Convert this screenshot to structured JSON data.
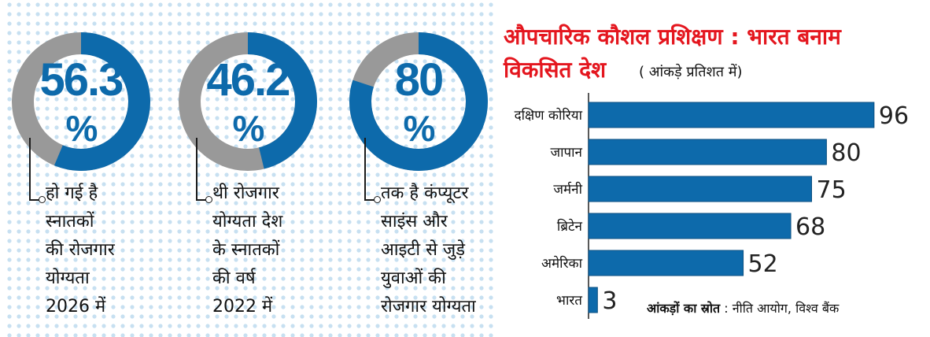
{
  "donuts": [
    {
      "value": 56.3,
      "number": "56.3",
      "unit": "%",
      "caption": [
        "हो गई है",
        "स्नातकों",
        "की रोजगार",
        "योग्यता",
        "2026 में"
      ]
    },
    {
      "value": 46.2,
      "number": "46.2",
      "unit": "%",
      "caption": [
        "थी रोजगार",
        "योग्यता देश",
        "के स्नातकों",
        "की वर्ष",
        "2022 में"
      ]
    },
    {
      "value": 80,
      "number": "80",
      "unit": "%",
      "caption": [
        "तक है कंप्यूटर",
        "साइंस और",
        "आइटी से जुड़े",
        "युवाओं की",
        "रोजगार योग्यता"
      ]
    }
  ],
  "chart_data": {
    "type": "bar",
    "orientation": "horizontal",
    "title_line1": "औपचारिक कौशल प्रशिक्षण : भारत बनाम",
    "title_line2": "विकसित देश",
    "subtitle": "( आंकड़े प्रतिशत में)",
    "categories": [
      "दक्षिण कोरिया",
      "जापान",
      "जर्मनी",
      "ब्रिटेन",
      "अमेरिका",
      "भारत"
    ],
    "values": [
      96,
      80,
      75,
      68,
      52,
      3
    ],
    "xlim": [
      0,
      100
    ],
    "grid": false,
    "legend": "none"
  },
  "source": {
    "label": "आंकड़ों का स्रोत",
    "text": ": नीति आयोग, विश्व बैंक"
  },
  "colors": {
    "blue": "#0d6aab",
    "grey": "#999999",
    "red": "#e4161e",
    "dots": "#c7e0f1"
  }
}
